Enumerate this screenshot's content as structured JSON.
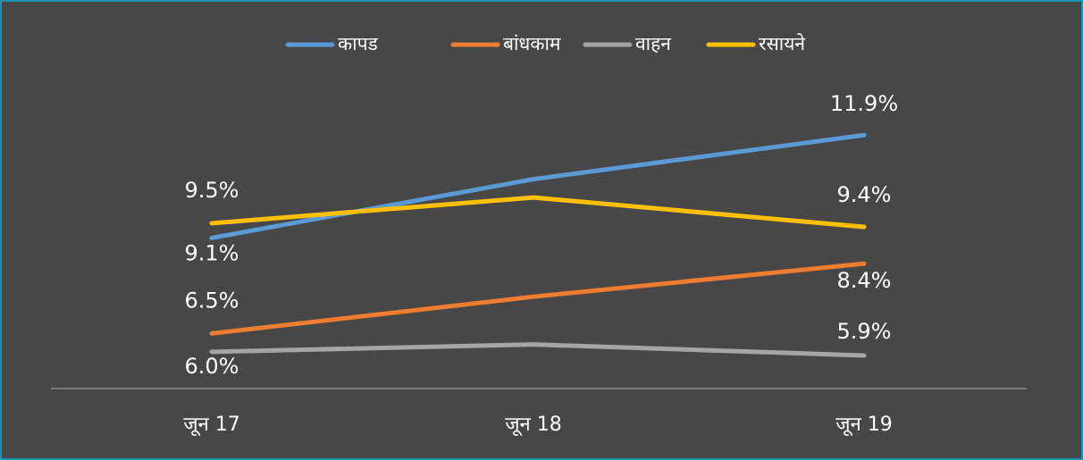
{
  "chart_data": {
    "type": "line",
    "categories": [
      "जून 17",
      "जून 18",
      "जून 19"
    ],
    "series": [
      {
        "name": "कापड",
        "color": "#5b9bd5",
        "values": [
          9.1,
          10.7,
          11.9
        ],
        "value_labels": [
          "9.1%",
          null,
          "11.9%"
        ]
      },
      {
        "name": "बांधकाम",
        "color": "#ed7d31",
        "values": [
          6.5,
          7.5,
          8.4
        ],
        "value_labels": [
          "6.5%",
          null,
          "8.4%"
        ]
      },
      {
        "name": "वाहन",
        "color": "#a5a5a5",
        "values": [
          6.0,
          6.2,
          5.9
        ],
        "value_labels": [
          "6.0%",
          null,
          "5.9%"
        ]
      },
      {
        "name": "रसायने",
        "color": "#ffc000",
        "values": [
          9.5,
          10.2,
          9.4
        ],
        "value_labels": [
          "9.5%",
          null,
          "9.4%"
        ]
      }
    ],
    "ylim": [
      5,
      13
    ],
    "legend": "top"
  }
}
